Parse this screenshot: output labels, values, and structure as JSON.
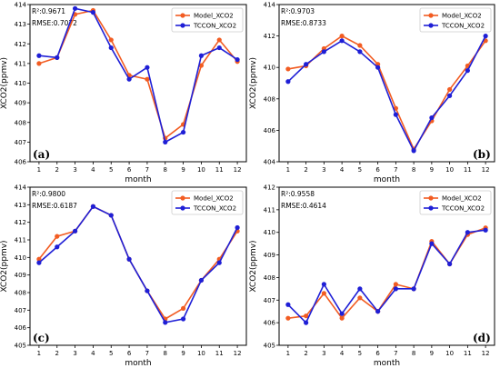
{
  "colors": {
    "model": "#f25c22",
    "tcccon": "#1f1fd6"
  },
  "chart_data": [
    {
      "type": "line",
      "panel": "(a)",
      "r2": "R²:0.9671",
      "rmse": "RMSE:0.7072",
      "xlabel": "month",
      "ylabel": "XCO2(ppmv)",
      "x": [
        1,
        2,
        3,
        4,
        5,
        6,
        7,
        8,
        9,
        10,
        11,
        12
      ],
      "ylim": [
        406,
        414
      ],
      "yticks": [
        406,
        407,
        408,
        409,
        410,
        411,
        412,
        413,
        414
      ],
      "legend_position": "top-right",
      "series": [
        {
          "name": "Model_XCO2",
          "values": [
            411.0,
            411.3,
            413.5,
            413.7,
            412.2,
            410.4,
            410.2,
            407.2,
            407.9,
            410.9,
            412.2,
            411.1
          ]
        },
        {
          "name": "TCCON_XCO2",
          "values": [
            411.4,
            411.3,
            413.8,
            413.6,
            411.8,
            410.2,
            410.8,
            407.0,
            407.5,
            411.4,
            411.8,
            411.2
          ]
        }
      ]
    },
    {
      "type": "line",
      "panel": "(b)",
      "r2": "R²:0.9703",
      "rmse": "RMSE:0.8733",
      "xlabel": "month",
      "ylabel": "XCO2(ppmv)",
      "x": [
        1,
        2,
        3,
        4,
        5,
        6,
        7,
        8,
        9,
        10,
        11,
        12
      ],
      "ylim": [
        404,
        414
      ],
      "yticks": [
        404,
        406,
        408,
        410,
        412,
        414
      ],
      "legend_position": "top-right",
      "series": [
        {
          "name": "Model_XCO2",
          "values": [
            409.9,
            410.1,
            411.2,
            412.0,
            411.4,
            410.2,
            407.4,
            404.8,
            406.6,
            408.6,
            410.1,
            411.7
          ]
        },
        {
          "name": "TCCON_XCO2",
          "values": [
            409.1,
            410.2,
            411.0,
            411.7,
            411.0,
            410.0,
            407.0,
            404.7,
            406.8,
            408.2,
            409.8,
            412.0
          ]
        }
      ]
    },
    {
      "type": "line",
      "panel": "(c)",
      "r2": "R²:0.9800",
      "rmse": "RMSE:0.6187",
      "xlabel": "month",
      "ylabel": "XCO2(ppmv)",
      "x": [
        1,
        2,
        3,
        4,
        5,
        6,
        7,
        8,
        9,
        10,
        11,
        12
      ],
      "ylim": [
        405,
        414
      ],
      "yticks": [
        405,
        406,
        407,
        408,
        409,
        410,
        411,
        412,
        413,
        414
      ],
      "legend_position": "top-right",
      "series": [
        {
          "name": "Model_XCO2",
          "values": [
            409.9,
            411.2,
            411.5,
            412.9,
            412.4,
            409.9,
            408.1,
            406.5,
            407.1,
            408.7,
            409.9,
            411.5
          ]
        },
        {
          "name": "TCCON_XCO2",
          "values": [
            409.7,
            410.6,
            411.5,
            412.9,
            412.4,
            409.9,
            408.1,
            406.3,
            406.5,
            408.7,
            409.7,
            411.7
          ]
        }
      ]
    },
    {
      "type": "line",
      "panel": "(d)",
      "r2": "R²:0.9558",
      "rmse": "RMSE:0.4614",
      "xlabel": "month",
      "ylabel": "XCO2(ppmv)",
      "x": [
        1,
        2,
        3,
        4,
        5,
        6,
        7,
        8,
        9,
        10,
        11,
        12
      ],
      "ylim": [
        405,
        412
      ],
      "yticks": [
        405,
        406,
        407,
        408,
        409,
        410,
        411,
        412
      ],
      "legend_position": "top-right",
      "series": [
        {
          "name": "Model_XCO2",
          "values": [
            406.2,
            406.3,
            407.3,
            406.2,
            407.1,
            406.5,
            407.7,
            407.5,
            409.6,
            408.6,
            409.9,
            410.2
          ]
        },
        {
          "name": "TCCON_XCO2",
          "values": [
            406.8,
            406.0,
            407.7,
            406.4,
            407.5,
            406.5,
            407.5,
            407.5,
            409.5,
            408.6,
            410.0,
            410.1
          ]
        }
      ]
    }
  ]
}
